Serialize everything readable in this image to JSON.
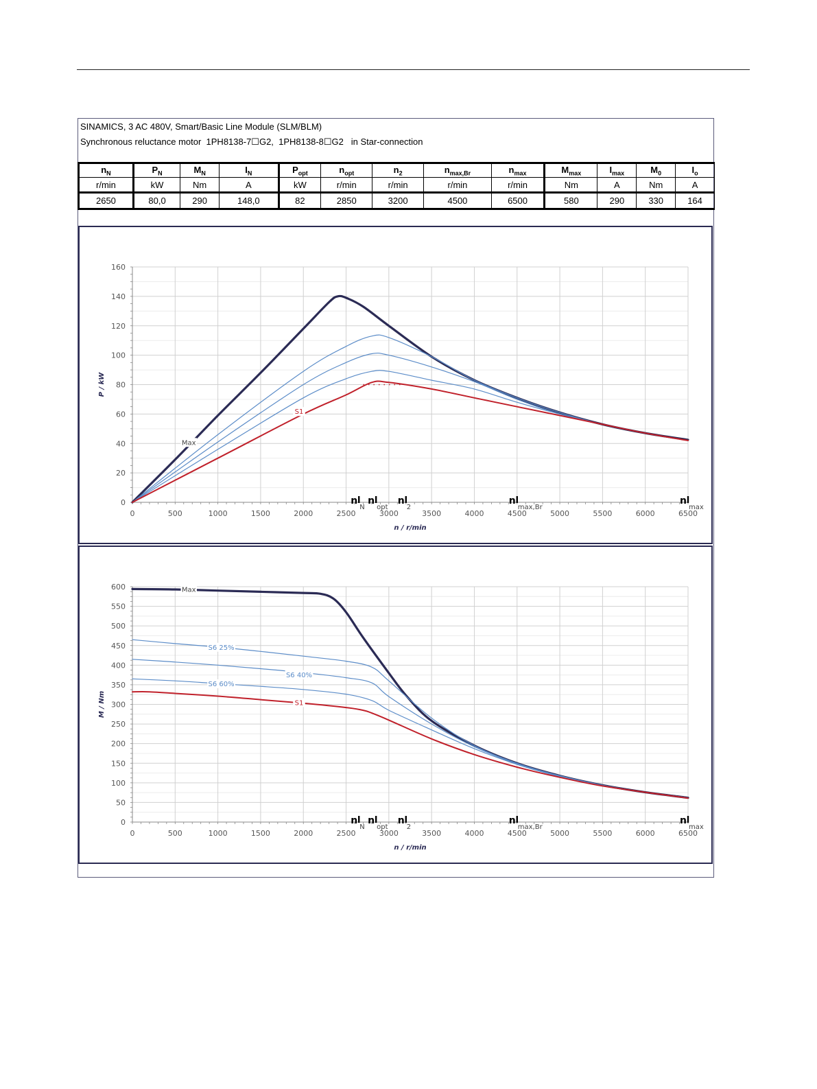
{
  "header": {
    "line1": "SINAMICS, 3 AC 480V, Smart/Basic Line Module (SLM/BLM)",
    "line2": "Synchronous reluctance motor  1PH8138-7☐G2,  1PH8138-8☐G2   in Star-connection"
  },
  "spec_table": {
    "columns": [
      {
        "name": "n",
        "sub": "N",
        "unit": "r/min",
        "value": "2650"
      },
      {
        "name": "P",
        "sub": "N",
        "unit": "kW",
        "value": "80,0"
      },
      {
        "name": "M",
        "sub": "N",
        "unit": "Nm",
        "value": "290"
      },
      {
        "name": "I",
        "sub": "N",
        "unit": "A",
        "value": "148,0"
      },
      {
        "name": "P",
        "sub": "opt",
        "unit": "kW",
        "value": "82"
      },
      {
        "name": "n",
        "sub": "opt",
        "unit": "r/min",
        "value": "2850"
      },
      {
        "name": "n",
        "sub": "2",
        "unit": "r/min",
        "value": "3200"
      },
      {
        "name": "n",
        "sub": "max,Br",
        "unit": "r/min",
        "value": "4500"
      },
      {
        "name": "n",
        "sub": "max",
        "unit": "r/min",
        "value": "6500"
      },
      {
        "name": "M",
        "sub": "max",
        "unit": "Nm",
        "value": "580"
      },
      {
        "name": "I",
        "sub": "max",
        "unit": "A",
        "value": "290"
      },
      {
        "name": "M",
        "sub": "0",
        "unit": "Nm",
        "value": "330"
      },
      {
        "name": "I",
        "sub": "o",
        "unit": "A",
        "value": "164"
      }
    ]
  },
  "colors": {
    "max": "#2b2b55",
    "s1": "#c0202a",
    "s6": "#5b8cc8",
    "grid": "#d0d0d0"
  },
  "chart_data": [
    {
      "type": "line",
      "xlabel": "n / r/min",
      "ylabel": "P / kW",
      "xlim": [
        0,
        6500
      ],
      "ylim": [
        0,
        160
      ],
      "xticks": [
        0,
        500,
        1000,
        1500,
        2000,
        2500,
        3000,
        3500,
        4000,
        4500,
        5000,
        5500,
        6000,
        6500
      ],
      "yticks": [
        0,
        20,
        40,
        60,
        80,
        100,
        120,
        140,
        160
      ],
      "grid": true,
      "markers": [
        {
          "label": "n",
          "sub": "N",
          "x": 2650
        },
        {
          "label": "n",
          "sub": "opt",
          "x": 2850
        },
        {
          "label": "n",
          "sub": "2",
          "x": 3200
        },
        {
          "label": "n",
          "sub": "max,Br",
          "x": 4500
        },
        {
          "label": "n",
          "sub": "max",
          "x": 6500
        }
      ],
      "series": [
        {
          "name": "Max",
          "label_at": [
            660,
            40
          ],
          "color": "max",
          "width": 3.2,
          "x": [
            0,
            500,
            1000,
            1500,
            2000,
            2300,
            2400,
            2500,
            2700,
            3000,
            3500,
            4000,
            4500,
            5000,
            5500,
            6000,
            6500
          ],
          "y": [
            0,
            29,
            59,
            88,
            118,
            136,
            140,
            139,
            133,
            120,
            99,
            83,
            71,
            61,
            53,
            47,
            42.5
          ]
        },
        {
          "name": "",
          "color": "s6",
          "width": 1.2,
          "x": [
            0,
            1000,
            2000,
            2500,
            2800,
            3000,
            3500,
            4000,
            4500,
            5000,
            5500,
            6000,
            6500
          ],
          "y": [
            0,
            46,
            89,
            106,
            113,
            112,
            99,
            83,
            71,
            61,
            53,
            47,
            42
          ]
        },
        {
          "name": "",
          "color": "s6",
          "width": 1.2,
          "x": [
            0,
            1000,
            2000,
            2500,
            2800,
            3000,
            3500,
            4000,
            4500,
            5000,
            5500,
            6000,
            6500
          ],
          "y": [
            0,
            41,
            80,
            95,
            101,
            100,
            92,
            82,
            70,
            60,
            53,
            47,
            42
          ]
        },
        {
          "name": "",
          "color": "s6",
          "width": 1.2,
          "x": [
            0,
            1000,
            2000,
            2500,
            2800,
            3000,
            3500,
            4000,
            4500,
            5000,
            5500,
            6000,
            6500
          ],
          "y": [
            0,
            36,
            71,
            84,
            89,
            89,
            83,
            77,
            68,
            60,
            53,
            47,
            42
          ]
        },
        {
          "name": "S1",
          "label_at": [
            1950,
            61
          ],
          "color": "s1",
          "width": 2,
          "x": [
            0,
            1000,
            2000,
            2500,
            2800,
            3000,
            3500,
            4000,
            4500,
            5000,
            5500,
            6000,
            6500
          ],
          "y": [
            0,
            30,
            60,
            73,
            81.5,
            81.5,
            77,
            71,
            65,
            59,
            53,
            47,
            42
          ]
        }
      ]
    },
    {
      "type": "line",
      "xlabel": "n / r/min",
      "ylabel": "M / Nm",
      "xlim": [
        0,
        6500
      ],
      "ylim": [
        0,
        600
      ],
      "xticks": [
        0,
        500,
        1000,
        1500,
        2000,
        2500,
        3000,
        3500,
        4000,
        4500,
        5000,
        5500,
        6000,
        6500
      ],
      "yticks": [
        0,
        50,
        100,
        150,
        200,
        250,
        300,
        350,
        400,
        450,
        500,
        550,
        600
      ],
      "grid": true,
      "markers": [
        {
          "label": "n",
          "sub": "N",
          "x": 2650
        },
        {
          "label": "n",
          "sub": "opt",
          "x": 2850
        },
        {
          "label": "n",
          "sub": "2",
          "x": 3200
        },
        {
          "label": "n",
          "sub": "max,Br",
          "x": 4500
        },
        {
          "label": "n",
          "sub": "max",
          "x": 6500
        }
      ],
      "series": [
        {
          "name": "Max",
          "label_at": [
            660,
            590
          ],
          "color": "max",
          "width": 3.2,
          "x": [
            0,
            500,
            1000,
            1500,
            2000,
            2200,
            2350,
            2500,
            2700,
            3000,
            3200,
            3500,
            4000,
            4500,
            5000,
            5500,
            6000,
            6500
          ],
          "y": [
            594,
            593,
            590,
            587,
            584,
            582,
            570,
            535,
            470,
            380,
            323,
            258,
            195,
            150,
            118,
            94,
            76,
            62
          ]
        },
        {
          "name": "S6 25%",
          "label_at": [
            1040,
            443
          ],
          "color": "s6",
          "width": 1.2,
          "x": [
            0,
            500,
            1000,
            1500,
            2000,
            2500,
            2800,
            3000,
            3500,
            4000,
            4500,
            5000,
            5500,
            6000,
            6500
          ],
          "y": [
            465,
            455,
            446,
            435,
            423,
            410,
            395,
            360,
            265,
            195,
            150,
            118,
            94,
            76,
            62
          ]
        },
        {
          "name": "S6 40%",
          "label_at": [
            1950,
            373
          ],
          "color": "s6",
          "width": 1.2,
          "x": [
            0,
            500,
            1000,
            1500,
            2000,
            2500,
            2800,
            3000,
            3500,
            4000,
            4500,
            5000,
            5500,
            6000,
            6500
          ],
          "y": [
            415,
            408,
            400,
            391,
            381,
            368,
            355,
            320,
            250,
            192,
            149,
            118,
            94,
            76,
            62
          ]
        },
        {
          "name": "S6 60%",
          "label_at": [
            1040,
            350
          ],
          "color": "s6",
          "width": 1.2,
          "x": [
            0,
            500,
            1000,
            1500,
            2000,
            2500,
            2800,
            3000,
            3500,
            4000,
            4500,
            5000,
            5500,
            6000,
            6500
          ],
          "y": [
            365,
            360,
            353,
            346,
            338,
            326,
            310,
            285,
            235,
            187,
            147,
            116,
            93,
            76,
            62
          ]
        },
        {
          "name": "S1",
          "label_at": [
            1950,
            302
          ],
          "color": "s1",
          "width": 2,
          "x": [
            0,
            200,
            500,
            1000,
            1500,
            2000,
            2500,
            2700,
            2800,
            3000,
            3500,
            4000,
            4500,
            5000,
            5500,
            6000,
            6500
          ],
          "y": [
            332,
            332,
            328,
            321,
            312,
            303,
            292,
            285,
            278,
            260,
            212,
            172,
            140,
            114,
            92,
            76,
            61
          ]
        }
      ]
    }
  ]
}
